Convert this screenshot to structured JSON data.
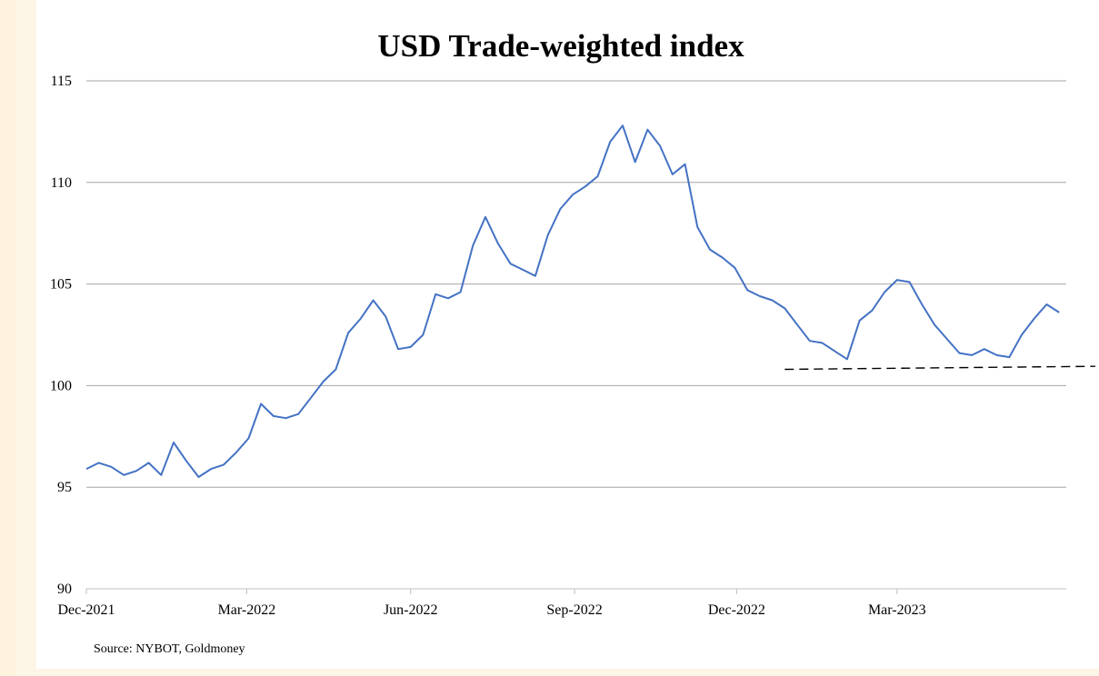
{
  "chart_data": {
    "type": "line",
    "title": "USD Trade-weighted index",
    "xlabel": "",
    "ylabel": "",
    "ylim": [
      90,
      115
    ],
    "yticks": [
      90,
      95,
      100,
      105,
      110,
      115
    ],
    "xticks": [
      "Dec-2021",
      "Mar-2022",
      "Jun-2022",
      "Sep-2022",
      "Dec-2022",
      "Mar-2023"
    ],
    "grid": "horizontal",
    "legend": "none",
    "series": [
      {
        "color": "#4472c4",
        "x": [
          "2021-12-01",
          "2021-12-08",
          "2021-12-15",
          "2021-12-22",
          "2021-12-29",
          "2022-01-05",
          "2022-01-12",
          "2022-01-19",
          "2022-01-26",
          "2022-02-02",
          "2022-02-09",
          "2022-02-16",
          "2022-02-23",
          "2022-03-02",
          "2022-03-09",
          "2022-03-16",
          "2022-03-23",
          "2022-03-30",
          "2022-04-06",
          "2022-04-13",
          "2022-04-20",
          "2022-04-27",
          "2022-05-04",
          "2022-05-11",
          "2022-05-18",
          "2022-05-25",
          "2022-06-01",
          "2022-06-08",
          "2022-06-15",
          "2022-06-22",
          "2022-06-29",
          "2022-07-06",
          "2022-07-13",
          "2022-07-20",
          "2022-07-27",
          "2022-08-03",
          "2022-08-10",
          "2022-08-17",
          "2022-08-24",
          "2022-08-31",
          "2022-09-07",
          "2022-09-14",
          "2022-09-21",
          "2022-09-28",
          "2022-10-05",
          "2022-10-12",
          "2022-10-19",
          "2022-10-26",
          "2022-11-02",
          "2022-11-09",
          "2022-11-16",
          "2022-11-23",
          "2022-11-30",
          "2022-12-07",
          "2022-12-14",
          "2022-12-21",
          "2022-12-28",
          "2023-01-04",
          "2023-01-11",
          "2023-01-18",
          "2023-01-25",
          "2023-02-01",
          "2023-02-08",
          "2023-02-15",
          "2023-02-22",
          "2023-03-01",
          "2023-03-08",
          "2023-03-15",
          "2023-03-22",
          "2023-03-29",
          "2023-04-05",
          "2023-04-12",
          "2023-04-19",
          "2023-04-26",
          "2023-05-03",
          "2023-05-10",
          "2023-05-17",
          "2023-05-24",
          "2023-05-31"
        ],
        "values": [
          95.9,
          96.2,
          96.0,
          95.6,
          95.8,
          96.2,
          95.6,
          97.2,
          96.3,
          95.5,
          95.9,
          96.1,
          96.7,
          97.4,
          99.1,
          98.5,
          98.4,
          98.6,
          99.4,
          100.2,
          100.8,
          102.6,
          103.3,
          104.2,
          103.4,
          101.8,
          101.9,
          102.5,
          104.5,
          104.3,
          104.6,
          106.9,
          108.3,
          107.0,
          106.0,
          105.7,
          105.4,
          107.4,
          108.7,
          109.4,
          109.8,
          110.3,
          112.0,
          112.8,
          111.0,
          112.6,
          111.8,
          110.4,
          110.9,
          107.8,
          106.7,
          106.3,
          105.8,
          104.7,
          104.4,
          104.2,
          103.8,
          103.0,
          102.2,
          102.1,
          101.7,
          101.3,
          103.2,
          103.7,
          104.6,
          105.2,
          105.1,
          104.0,
          103.0,
          102.3,
          101.6,
          101.5,
          101.8,
          101.5,
          101.4,
          102.5,
          103.3,
          104.0,
          103.6
        ]
      }
    ],
    "reference_line": {
      "style": "dashed",
      "x_start": "2022-12-28",
      "x_end": "2023-06-05",
      "y_start": 100.8,
      "y_end": 100.95
    },
    "source": "Source: NYBOT, Goldmoney"
  }
}
